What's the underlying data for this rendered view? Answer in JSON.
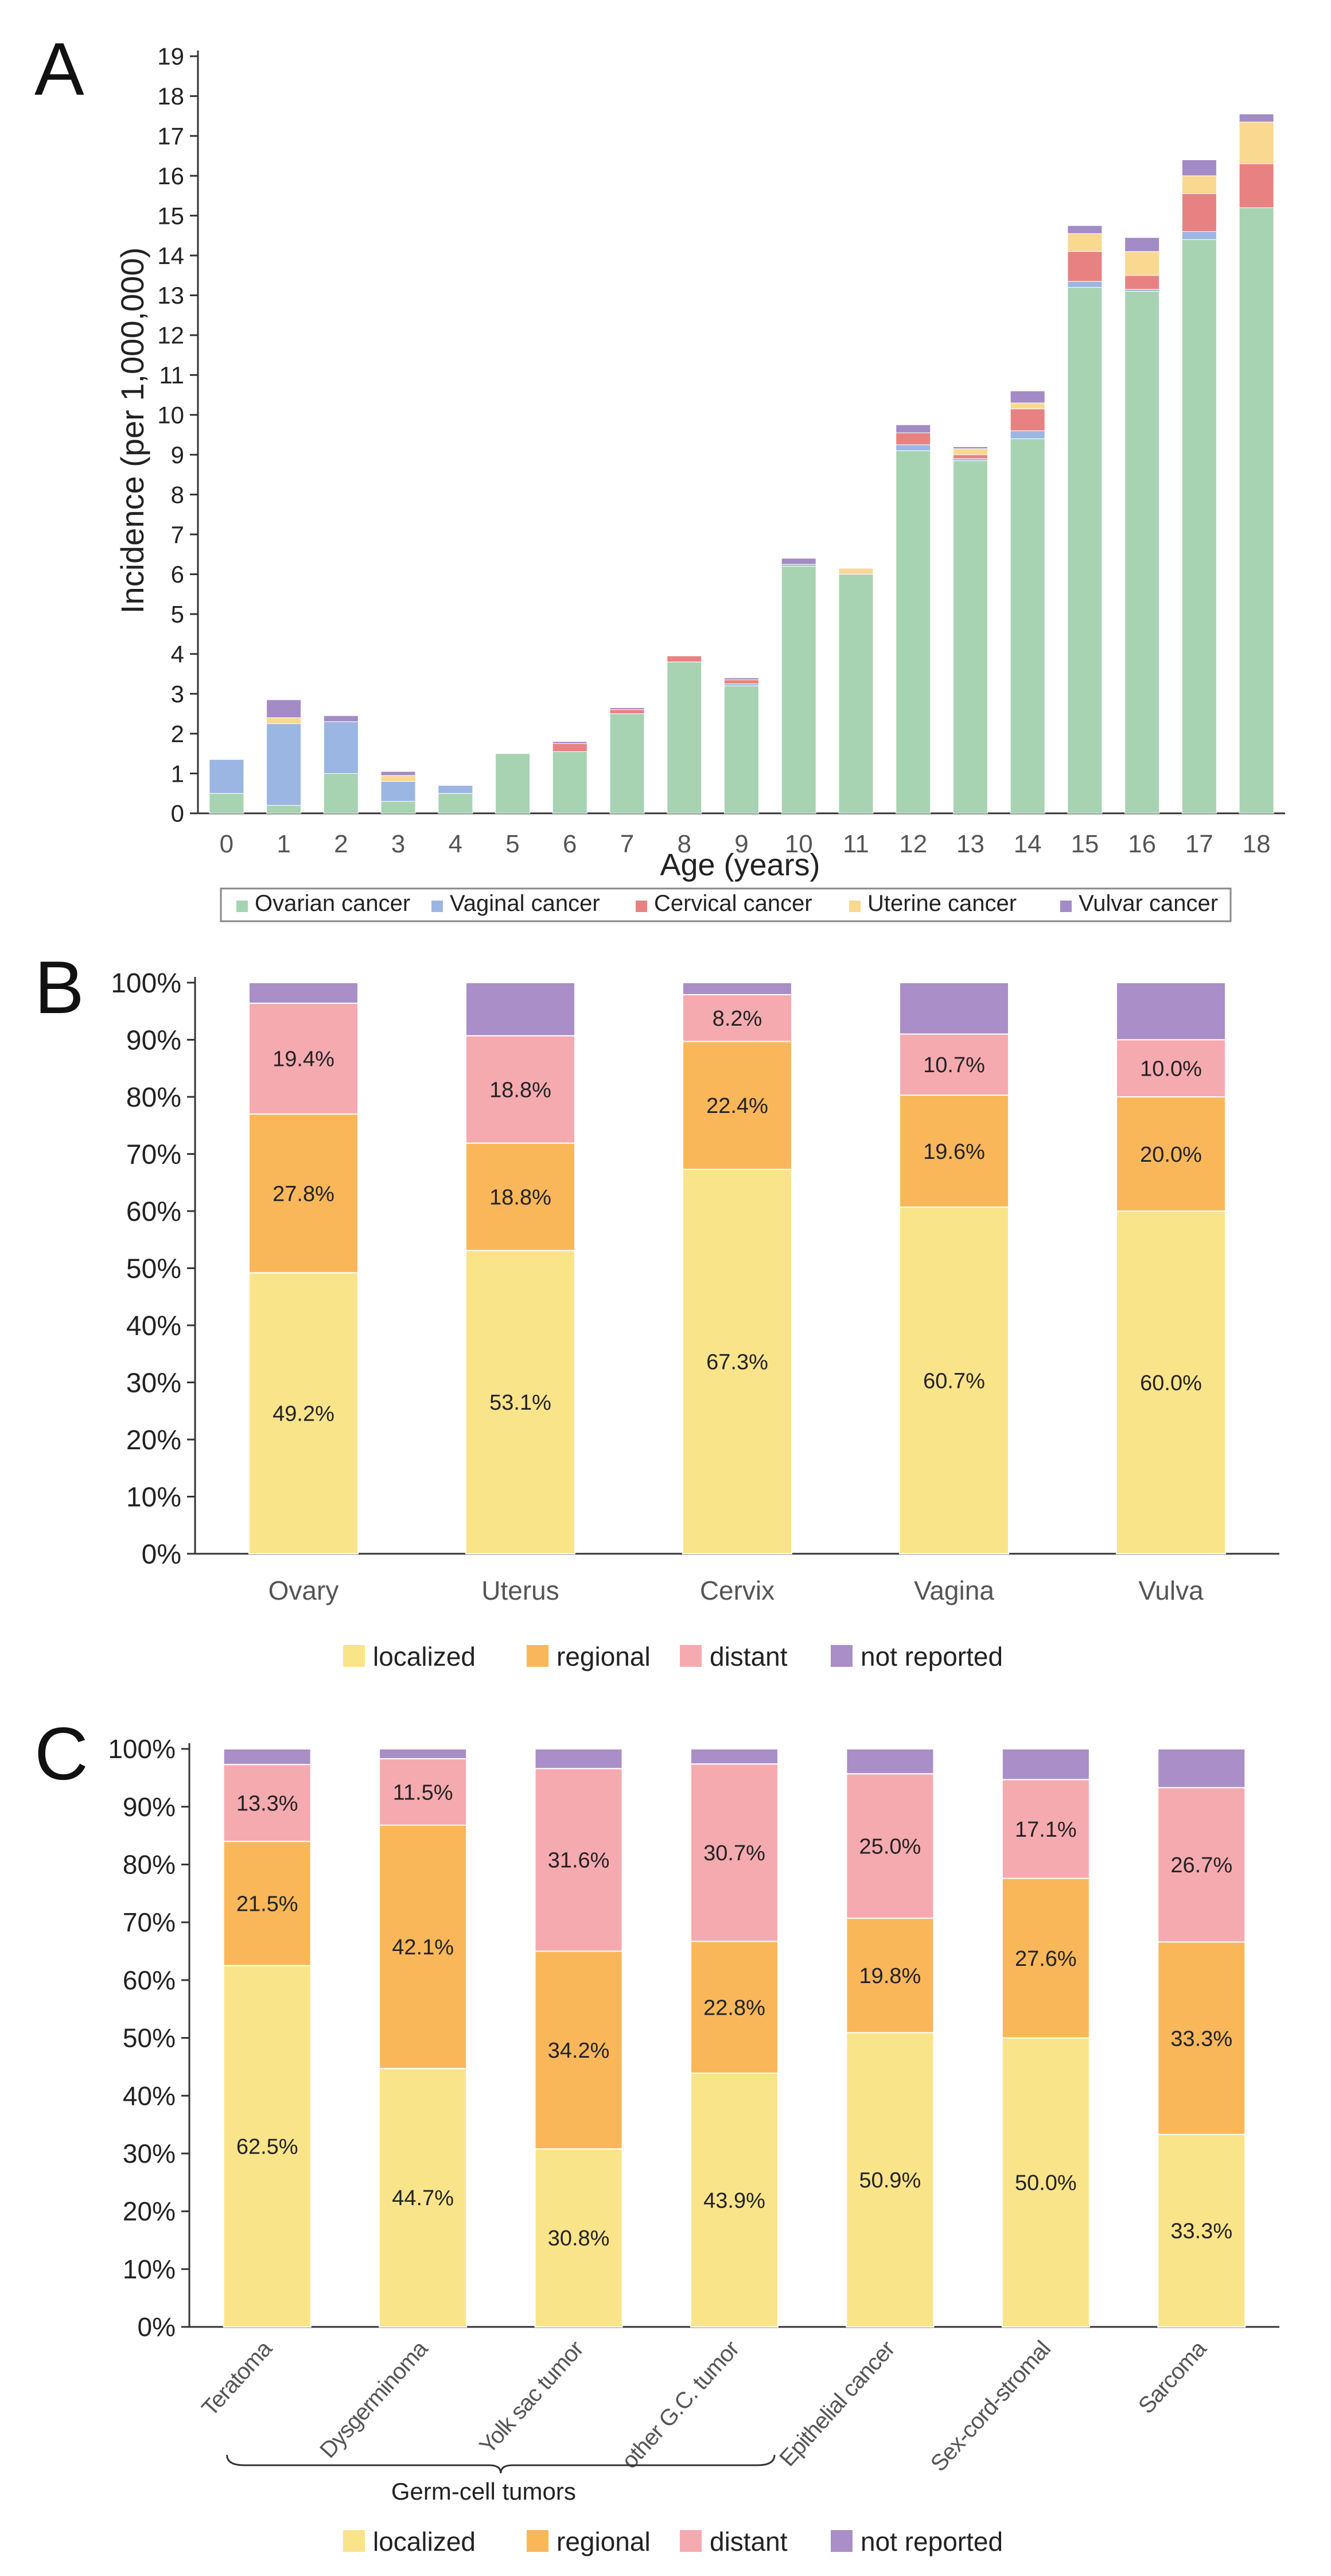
{
  "colors": {
    "ovarian": "#a7d3b2",
    "vaginal": "#9bb6e2",
    "cervical": "#e88282",
    "uterine": "#f9d890",
    "vulvar": "#a28bc6",
    "localized": "#fae48a",
    "regional": "#f9b75a",
    "distant": "#f5aab0",
    "not_reported": "#a98ec7",
    "axis": "#333333",
    "text": "#222222",
    "tick_text": "#555555"
  },
  "chart_data": [
    {
      "panel": "A",
      "type": "bar",
      "stacked": true,
      "ylabel": "Incidence (per 1,000,000)",
      "xlabel": "Age (years)",
      "ylim": [
        0,
        19
      ],
      "yticks": [
        "0",
        "1",
        "2",
        "3",
        "4",
        "5",
        "6",
        "7",
        "8",
        "9",
        "10",
        "11",
        "12",
        "13",
        "14",
        "15",
        "16",
        "17",
        "18",
        "19"
      ],
      "categories": [
        "0",
        "1",
        "2",
        "3",
        "4",
        "5",
        "6",
        "7",
        "8",
        "9",
        "10",
        "11",
        "12",
        "13",
        "14",
        "15",
        "16",
        "17",
        "18"
      ],
      "legend_position": "bottom",
      "series": [
        {
          "name": "Ovarian cancer",
          "color_key": "ovarian",
          "values": [
            0.5,
            0.2,
            1.0,
            0.3,
            0.5,
            1.5,
            1.55,
            2.5,
            3.8,
            3.2,
            6.2,
            6.0,
            9.1,
            8.85,
            9.4,
            13.2,
            13.1,
            14.4,
            15.2
          ]
        },
        {
          "name": "Vaginal cancer",
          "color_key": "vaginal",
          "values": [
            0.85,
            2.05,
            1.3,
            0.5,
            0.2,
            0,
            0,
            0,
            0,
            0.05,
            0.05,
            0,
            0.15,
            0.05,
            0.2,
            0.15,
            0.05,
            0.2,
            0
          ]
        },
        {
          "name": "Cervical cancer",
          "color_key": "cervical",
          "values": [
            0,
            0,
            0,
            0,
            0,
            0,
            0.2,
            0.1,
            0.15,
            0.1,
            0,
            0,
            0.3,
            0.1,
            0.55,
            0.75,
            0.35,
            0.95,
            1.1
          ]
        },
        {
          "name": "Uterine cancer",
          "color_key": "uterine",
          "values": [
            0,
            0.15,
            0,
            0.15,
            0,
            0,
            0,
            0,
            0,
            0,
            0,
            0.15,
            0,
            0.15,
            0.15,
            0.45,
            0.6,
            0.45,
            1.05
          ]
        },
        {
          "name": "Vulvar cancer",
          "color_key": "vulvar",
          "values": [
            0,
            0.45,
            0.15,
            0.1,
            0,
            0,
            0.05,
            0.05,
            0,
            0.05,
            0.15,
            0,
            0.2,
            0.05,
            0.3,
            0.2,
            0.35,
            0.4,
            0.2
          ]
        }
      ]
    },
    {
      "panel": "B",
      "type": "bar",
      "stacked": true,
      "ylim": [
        0,
        100
      ],
      "yticks": [
        "0%",
        "10%",
        "20%",
        "30%",
        "40%",
        "50%",
        "60%",
        "70%",
        "80%",
        "90%",
        "100%"
      ],
      "categories": [
        "Ovary",
        "Uterus",
        "Cervix",
        "Vagina",
        "Vulva"
      ],
      "legend_position": "bottom",
      "series": [
        {
          "name": "localized",
          "color_key": "localized",
          "values": [
            49.2,
            53.1,
            67.3,
            60.7,
            60.0
          ],
          "labels": [
            "49.2%",
            "53.1%",
            "67.3%",
            "60.7%",
            "60.0%"
          ]
        },
        {
          "name": "regional",
          "color_key": "regional",
          "values": [
            27.8,
            18.8,
            22.4,
            19.6,
            20.0
          ],
          "labels": [
            "27.8%",
            "18.8%",
            "22.4%",
            "19.6%",
            "20.0%"
          ]
        },
        {
          "name": "distant",
          "color_key": "distant",
          "values": [
            19.4,
            18.8,
            8.2,
            10.7,
            10.0
          ],
          "labels": [
            "19.4%",
            "18.8%",
            "8.2%",
            "10.7%",
            "10.0%"
          ]
        },
        {
          "name": "not reported",
          "color_key": "not_reported",
          "values": [
            3.6,
            9.3,
            2.1,
            9.0,
            10.0
          ],
          "labels": [
            "",
            "",
            "",
            "",
            ""
          ]
        }
      ]
    },
    {
      "panel": "C",
      "type": "bar",
      "stacked": true,
      "ylim": [
        0,
        100
      ],
      "yticks": [
        "0%",
        "10%",
        "20%",
        "30%",
        "40%",
        "50%",
        "60%",
        "70%",
        "80%",
        "90%",
        "100%"
      ],
      "categories": [
        "Teratoma",
        "Dysgerminoma",
        "Yolk sac tumor",
        "other G.C. tumor",
        "Epithelial cancer",
        "Sex-cord-stromal",
        "Sarcoma"
      ],
      "group_bracket": {
        "label": "Germ-cell tumors",
        "from_category": 0,
        "to_category": 3
      },
      "legend_position": "bottom",
      "series": [
        {
          "name": "localized",
          "color_key": "localized",
          "values": [
            62.5,
            44.7,
            30.8,
            43.9,
            50.9,
            50.0,
            33.3
          ],
          "labels": [
            "62.5%",
            "44.7%",
            "30.8%",
            "43.9%",
            "50.9%",
            "50.0%",
            "33.3%"
          ]
        },
        {
          "name": "regional",
          "color_key": "regional",
          "values": [
            21.5,
            42.1,
            34.2,
            22.8,
            19.8,
            27.6,
            33.3
          ],
          "labels": [
            "21.5%",
            "42.1%",
            "34.2%",
            "22.8%",
            "19.8%",
            "27.6%",
            "33.3%"
          ]
        },
        {
          "name": "distant",
          "color_key": "distant",
          "values": [
            13.3,
            11.5,
            31.6,
            30.7,
            25.0,
            17.1,
            26.7
          ],
          "labels": [
            "13.3%",
            "11.5%",
            "31.6%",
            "30.7%",
            "25.0%",
            "17.1%",
            "26.7%"
          ]
        },
        {
          "name": "not reported",
          "color_key": "not_reported",
          "values": [
            2.7,
            1.7,
            3.4,
            2.6,
            4.3,
            5.3,
            6.7
          ],
          "labels": [
            "",
            "",
            "",
            "",
            "",
            "",
            ""
          ]
        }
      ]
    }
  ]
}
